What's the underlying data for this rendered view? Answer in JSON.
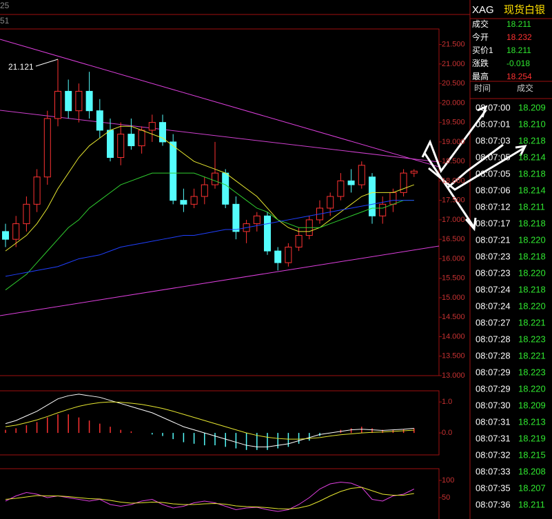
{
  "top_labels": [
    "25",
    "51"
  ],
  "chart_data": [
    {
      "type": "candlestick",
      "open": [
        16.7,
        16.5,
        16.9,
        17.4,
        18.1,
        19.6,
        20.3,
        19.8,
        20.3,
        19.8,
        19.3,
        18.6,
        19.2,
        18.9,
        19.3,
        19.5,
        19.0,
        17.5,
        17.4,
        17.6,
        17.9,
        18.2,
        17.4,
        16.7,
        16.9,
        17.1,
        16.2,
        15.9,
        16.3,
        16.6,
        17.0,
        17.3,
        17.6,
        18.0,
        17.9,
        18.1,
        17.1,
        17.4,
        17.7,
        18.2
      ],
      "high": [
        16.9,
        17.1,
        17.6,
        18.3,
        19.8,
        21.121,
        20.6,
        20.5,
        20.8,
        20.1,
        19.6,
        19.5,
        19.6,
        19.4,
        19.7,
        19.7,
        19.2,
        17.8,
        17.8,
        18.1,
        19.0,
        18.3,
        17.6,
        17.0,
        17.2,
        17.2,
        16.3,
        16.4,
        16.8,
        17.1,
        17.5,
        17.7,
        18.2,
        18.3,
        18.5,
        18.2,
        17.6,
        17.8,
        18.3,
        18.3
      ],
      "low": [
        16.3,
        16.3,
        16.7,
        17.2,
        17.9,
        19.4,
        19.6,
        19.5,
        19.6,
        19.1,
        18.5,
        18.4,
        18.8,
        18.7,
        19.0,
        18.9,
        17.4,
        17.2,
        17.3,
        17.4,
        17.8,
        17.3,
        16.5,
        16.4,
        16.7,
        16.1,
        15.7,
        15.8,
        16.2,
        16.5,
        16.9,
        17.1,
        17.5,
        17.7,
        17.8,
        16.9,
        16.9,
        17.2,
        17.6,
        18.1
      ],
      "close": [
        16.5,
        16.9,
        17.4,
        18.1,
        19.6,
        20.3,
        19.8,
        20.3,
        19.8,
        19.3,
        18.6,
        19.2,
        18.9,
        19.3,
        19.5,
        19.0,
        17.5,
        17.4,
        17.6,
        17.9,
        18.2,
        17.4,
        16.7,
        16.9,
        17.1,
        16.2,
        15.9,
        16.3,
        16.6,
        17.0,
        17.3,
        17.6,
        18.0,
        17.9,
        18.4,
        17.1,
        17.4,
        17.7,
        18.2,
        18.25
      ],
      "up_color": "#ff3232",
      "down_color": "#54fcfc",
      "series": [
        {
          "color": "#e8e830",
          "values": [
            16.2,
            16.4,
            16.6,
            16.9,
            17.3,
            17.8,
            18.2,
            18.6,
            18.9,
            19.1,
            19.3,
            19.4,
            19.4,
            19.3,
            19.2,
            19.1,
            18.9,
            18.7,
            18.5,
            18.4,
            18.3,
            18.2,
            18.0,
            17.8,
            17.6,
            17.3,
            17.0,
            16.8,
            16.7,
            16.7,
            16.8,
            17.0,
            17.2,
            17.4,
            17.6,
            17.7,
            17.7,
            17.7,
            17.8,
            17.9
          ]
        },
        {
          "color": "#30d030",
          "values": [
            15.2,
            15.4,
            15.6,
            15.9,
            16.2,
            16.5,
            16.8,
            17.0,
            17.3,
            17.5,
            17.7,
            17.9,
            18.0,
            18.1,
            18.2,
            18.2,
            18.2,
            18.2,
            18.2,
            18.1,
            18.0,
            17.9,
            17.7,
            17.5,
            17.3,
            17.2,
            17.0,
            16.9,
            16.8,
            16.8,
            16.8,
            16.9,
            17.0,
            17.1,
            17.2,
            17.3,
            17.3,
            17.4,
            17.5,
            17.5
          ]
        },
        {
          "color": "#2040ff",
          "values": [
            15.55,
            15.6,
            15.65,
            15.7,
            15.75,
            15.8,
            15.9,
            16.0,
            16.05,
            16.1,
            16.2,
            16.3,
            16.35,
            16.4,
            16.45,
            16.5,
            16.55,
            16.6,
            16.6,
            16.65,
            16.7,
            16.75,
            16.75,
            16.8,
            16.85,
            16.9,
            16.95,
            17.0,
            17.05,
            17.1,
            17.15,
            17.2,
            17.25,
            17.3,
            17.35,
            17.4,
            17.45,
            17.5,
            17.5,
            17.5
          ]
        }
      ],
      "ylim": [
        13.0,
        21.9
      ],
      "yticks": [
        {
          "value": 21.5,
          "label": "21.500"
        },
        {
          "value": 21.0,
          "label": "21.000"
        },
        {
          "value": 20.5,
          "label": "20.500"
        },
        {
          "value": 20.0,
          "label": "20.000"
        },
        {
          "value": 19.5,
          "label": "19.500"
        },
        {
          "value": 19.0,
          "label": "19.000"
        },
        {
          "value": 18.5,
          "label": "18.500"
        },
        {
          "value": 18.0,
          "label": "18.000"
        },
        {
          "value": 17.5,
          "label": "17.500"
        },
        {
          "value": 17.0,
          "label": "17.000"
        },
        {
          "value": 16.5,
          "label": "16.500"
        },
        {
          "value": 16.0,
          "label": "16.000"
        },
        {
          "value": 15.5,
          "label": "15.500"
        },
        {
          "value": 15.0,
          "label": "15.000"
        },
        {
          "value": 14.5,
          "label": "14.500"
        },
        {
          "value": 14.0,
          "label": "14.000"
        },
        {
          "value": 13.5,
          "label": "13.500"
        },
        {
          "value": 13.0,
          "label": "13.000"
        }
      ]
    },
    {
      "type": "macd",
      "values": [
        0.1,
        0.15,
        0.25,
        0.35,
        0.5,
        0.6,
        0.6,
        0.5,
        0.4,
        0.3,
        0.2,
        0.1,
        0.05,
        0,
        -0.05,
        -0.1,
        -0.2,
        -0.3,
        -0.35,
        -0.4,
        -0.4,
        -0.45,
        -0.5,
        -0.55,
        -0.55,
        -0.55,
        -0.5,
        -0.45,
        -0.35,
        -0.25,
        -0.1,
        0,
        0.1,
        0.15,
        0.2,
        0.15,
        0.1,
        0.1,
        0.12,
        0.15
      ],
      "up_color": "#ff3232",
      "down_color": "#54fcfc",
      "series": [
        {
          "color": "#ffffff",
          "values": [
            0.3,
            0.4,
            0.55,
            0.7,
            0.9,
            1.1,
            1.2,
            1.25,
            1.2,
            1.15,
            1.05,
            0.95,
            0.85,
            0.75,
            0.65,
            0.5,
            0.35,
            0.2,
            0.1,
            0,
            -0.1,
            -0.2,
            -0.3,
            -0.4,
            -0.45,
            -0.45,
            -0.4,
            -0.35,
            -0.25,
            -0.15,
            -0.05,
            0.0,
            0.05,
            0.1,
            0.12,
            0.1,
            0.08,
            0.1,
            0.12,
            0.15
          ]
        },
        {
          "color": "#e8e830",
          "values": [
            0.2,
            0.25,
            0.33,
            0.42,
            0.53,
            0.65,
            0.76,
            0.86,
            0.93,
            0.98,
            1.0,
            0.99,
            0.96,
            0.92,
            0.86,
            0.79,
            0.7,
            0.6,
            0.5,
            0.4,
            0.3,
            0.2,
            0.1,
            0.0,
            -0.08,
            -0.14,
            -0.18,
            -0.2,
            -0.2,
            -0.18,
            -0.15,
            -0.1,
            -0.06,
            -0.03,
            0,
            0.02,
            0.03,
            0.05,
            0.07,
            0.09
          ]
        }
      ],
      "ylim": [
        -0.71,
        1.36
      ],
      "yticks": [
        {
          "value": 1,
          "label": "1.0"
        },
        {
          "value": 0,
          "label": "0.0"
        }
      ]
    },
    {
      "type": "kdj",
      "series": [
        {
          "color": "#e040e0",
          "values": [
            40,
            55,
            65,
            60,
            50,
            55,
            50,
            45,
            40,
            45,
            30,
            25,
            30,
            40,
            45,
            30,
            20,
            25,
            35,
            40,
            35,
            25,
            15,
            20,
            22,
            15,
            10,
            15,
            30,
            50,
            75,
            90,
            95,
            92,
            80,
            45,
            40,
            55,
            60,
            75
          ]
        },
        {
          "color": "#e8e830",
          "values": [
            45,
            48,
            52,
            56,
            55,
            55,
            53,
            50,
            47,
            46,
            42,
            37,
            34,
            35,
            37,
            36,
            32,
            30,
            30,
            32,
            33,
            31,
            26,
            24,
            23,
            21,
            18,
            17,
            20,
            27,
            40,
            55,
            68,
            77,
            80,
            70,
            60,
            57,
            57,
            62
          ]
        }
      ],
      "ylim": [
        -12,
        134
      ],
      "yticks": [
        100,
        50
      ]
    }
  ],
  "quote": {
    "symbol": "XAG",
    "name": "现货白银",
    "rows": [
      {
        "label": "成交",
        "value": "18.211",
        "color": "#30e830"
      },
      {
        "label": "今开",
        "value": "18.232",
        "color": "#ff3232"
      },
      {
        "label": "买价1",
        "value": "18.211",
        "color": "#30e830"
      },
      {
        "label": "涨跌",
        "value": "-0.018",
        "color": "#30e830"
      },
      {
        "label": "最高",
        "value": "18.254",
        "color": "#ff3232"
      }
    ]
  },
  "ticks": {
    "headers": [
      "时间",
      "成交"
    ],
    "color": "#30e830",
    "rows": [
      [
        "08:07:00",
        "18.209"
      ],
      [
        "08:07:01",
        "18.210"
      ],
      [
        "08:07:03",
        "18.218"
      ],
      [
        "08:07:05",
        "18.214"
      ],
      [
        "08:07:05",
        "18.218"
      ],
      [
        "08:07:06",
        "18.214"
      ],
      [
        "08:07:12",
        "18.211"
      ],
      [
        "08:07:17",
        "18.218"
      ],
      [
        "08:07:21",
        "18.220"
      ],
      [
        "08:07:23",
        "18.218"
      ],
      [
        "08:07:23",
        "18.220"
      ],
      [
        "08:07:24",
        "18.218"
      ],
      [
        "08:07:24",
        "18.220"
      ],
      [
        "08:07:27",
        "18.221"
      ],
      [
        "08:07:28",
        "18.223"
      ],
      [
        "08:07:28",
        "18.221"
      ],
      [
        "08:07:29",
        "18.223"
      ],
      [
        "08:07:29",
        "18.220"
      ],
      [
        "08:07:30",
        "18.209"
      ],
      [
        "08:07:31",
        "18.213"
      ],
      [
        "08:07:31",
        "18.219"
      ],
      [
        "08:07:32",
        "18.215"
      ],
      [
        "08:07:33",
        "18.208"
      ],
      [
        "08:07:35",
        "18.207"
      ],
      [
        "08:07:36",
        "18.211"
      ]
    ]
  }
}
